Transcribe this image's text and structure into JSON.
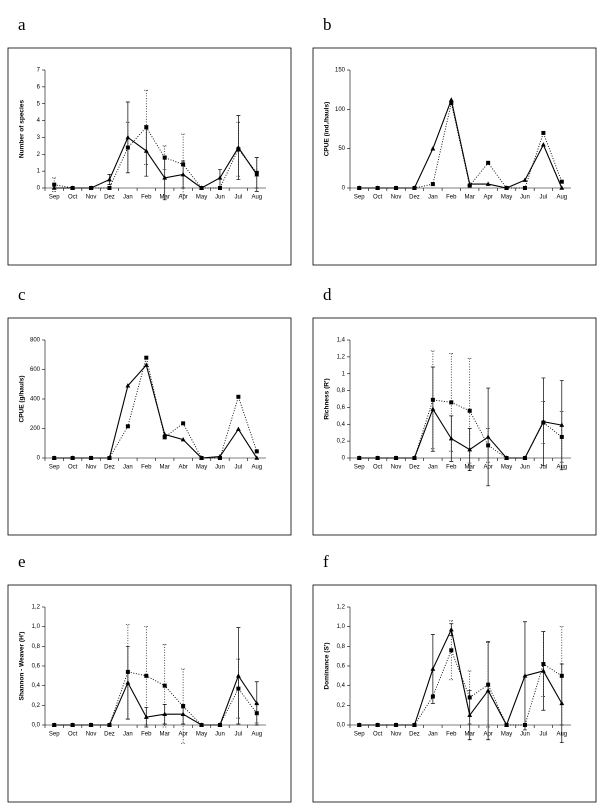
{
  "chart_data": [
    {
      "type": "line",
      "label": "a",
      "ylabel": "Number of species",
      "categories": [
        "Sep",
        "Oct",
        "Nov",
        "Dez",
        "Jan",
        "Feb",
        "Mar",
        "Apr",
        "May",
        "Jun",
        "Jul",
        "Aug"
      ],
      "ylim": [
        0,
        7
      ],
      "yticks": [
        0,
        1,
        2,
        3,
        4,
        5,
        6,
        7
      ],
      "series": [
        {
          "color": "#000000",
          "marker": "triangle",
          "line_style": "solid",
          "values": [
            0,
            0,
            0,
            0.5,
            3,
            2.2,
            0.6,
            0.8,
            0,
            0.6,
            2.4,
            0.8
          ],
          "errors": [
            null,
            null,
            null,
            0.3,
            2.1,
            1.5,
            1.3,
            0.8,
            null,
            0.5,
            1.9,
            1.0
          ]
        },
        {
          "color": "#000000",
          "marker": "square",
          "line_style": "dotted",
          "values": [
            0.2,
            0,
            0,
            0,
            2.4,
            3.6,
            1.8,
            1.4,
            0,
            0,
            2.3,
            0.9
          ],
          "errors": [
            0.4,
            null,
            null,
            null,
            1.5,
            2.2,
            0.7,
            1.8,
            null,
            null,
            1.6,
            0.9
          ]
        }
      ]
    },
    {
      "type": "line",
      "label": "b",
      "ylabel": "CPUE (ind./hauls)",
      "categories": [
        "Sep",
        "Oct",
        "Nov",
        "Dez",
        "Jan",
        "Feb",
        "Mar",
        "Apr",
        "May",
        "Jun",
        "Jul",
        "Aug"
      ],
      "ylim": [
        0,
        150
      ],
      "yticks": [
        0,
        50,
        100,
        150
      ],
      "series": [
        {
          "color": "#000000",
          "marker": "triangle",
          "line_style": "solid",
          "values": [
            0,
            0,
            0,
            0,
            50,
            112,
            5,
            5,
            0,
            10,
            55,
            0
          ]
        },
        {
          "color": "#000000",
          "marker": "square",
          "line_style": "dotted",
          "values": [
            0,
            0,
            0,
            0,
            5,
            108,
            3,
            32,
            0,
            0,
            70,
            8
          ]
        }
      ]
    },
    {
      "type": "line",
      "label": "c",
      "ylabel": "CPUE (g/hauls)",
      "categories": [
        "Sep",
        "Oct",
        "Nov",
        "Dez",
        "Jan",
        "Feb",
        "Mar",
        "Abr",
        "May",
        "Jun",
        "Jul",
        "Aug"
      ],
      "ylim": [
        0,
        800
      ],
      "yticks": [
        0,
        200,
        400,
        600,
        800
      ],
      "series": [
        {
          "color": "#000000",
          "marker": "triangle",
          "line_style": "solid",
          "values": [
            0,
            0,
            0,
            0,
            490,
            630,
            160,
            125,
            0,
            10,
            195,
            0
          ]
        },
        {
          "color": "#000000",
          "marker": "square",
          "line_style": "dotted",
          "values": [
            0,
            0,
            0,
            0,
            215,
            680,
            140,
            235,
            0,
            0,
            415,
            45
          ]
        }
      ]
    },
    {
      "type": "line",
      "label": "d",
      "ylabel": "Richness (R')",
      "categories": [
        "Sep",
        "Oct",
        "Nov",
        "Dez",
        "Jan",
        "Feb",
        "Mar",
        "Apr",
        "May",
        "Jun",
        "Jul",
        "Aug"
      ],
      "ylim": [
        0,
        1.4
      ],
      "yticks": [
        0,
        {
          "value": 0.2,
          "label": "0,2"
        },
        {
          "value": 0.4,
          "label": "0,4"
        },
        {
          "value": 0.6,
          "label": "0,6"
        },
        {
          "value": 0.8,
          "label": "0,8"
        },
        1,
        {
          "value": 1.2,
          "label": "1,2"
        },
        {
          "value": 1.4,
          "label": "1,4"
        }
      ],
      "series": [
        {
          "color": "#000000",
          "marker": "triangle",
          "line_style": "solid",
          "values": [
            0,
            0,
            0,
            0,
            0.58,
            0.23,
            0.1,
            0.25,
            0,
            0,
            0.43,
            0.39
          ],
          "errors": [
            null,
            null,
            null,
            null,
            0.5,
            0.27,
            0.25,
            0.58,
            null,
            null,
            0.52,
            0.53
          ]
        },
        {
          "color": "#000000",
          "marker": "square",
          "line_style": "dotted",
          "values": [
            0,
            0,
            0,
            0,
            0.69,
            0.66,
            0.56,
            0.15,
            0,
            0,
            0.42,
            0.25
          ],
          "errors": [
            null,
            null,
            null,
            null,
            0.58,
            0.58,
            0.62,
            0.2,
            null,
            null,
            0.25,
            0.3
          ]
        }
      ]
    },
    {
      "type": "line",
      "label": "e",
      "ylabel": "Shannon - Weaver (H')",
      "categories": [
        "Sep",
        "Oct",
        "Nov",
        "Dez",
        "Jan",
        "Feb",
        "Mar",
        "Apr",
        "May",
        "Jun",
        "Jul",
        "Aug"
      ],
      "ylim": [
        0,
        1.2
      ],
      "yticks": [
        {
          "value": 0,
          "label": "0,0"
        },
        {
          "value": 0.2,
          "label": "0,2"
        },
        {
          "value": 0.4,
          "label": "0,4"
        },
        {
          "value": 0.6,
          "label": "0,6"
        },
        {
          "value": 0.8,
          "label": "0,8"
        },
        {
          "value": 1,
          "label": "1,0"
        },
        {
          "value": 1.2,
          "label": "1,2"
        }
      ],
      "series": [
        {
          "color": "#000000",
          "marker": "triangle",
          "line_style": "solid",
          "values": [
            0,
            0,
            0,
            0,
            0.43,
            0.08,
            0.11,
            0.11,
            0,
            0,
            0.5,
            0.22
          ],
          "errors": [
            null,
            null,
            null,
            null,
            0.37,
            0.1,
            0.1,
            0.1,
            null,
            null,
            0.49,
            0.22
          ]
        },
        {
          "color": "#000000",
          "marker": "square",
          "line_style": "dotted",
          "values": [
            0,
            0,
            0,
            0,
            0.54,
            0.5,
            0.4,
            0.19,
            0,
            0,
            0.37,
            0.12
          ],
          "errors": [
            null,
            null,
            null,
            null,
            0.48,
            0.5,
            0.42,
            0.38,
            null,
            null,
            0.3,
            0.1
          ]
        }
      ]
    },
    {
      "type": "line",
      "label": "f",
      "ylabel": "Dominance (S')",
      "categories": [
        "Sep",
        "Oct",
        "Nov",
        "Dez",
        "Jan",
        "Feb",
        "Mar",
        "Apr",
        "May",
        "Jun",
        "Jul",
        "Aug"
      ],
      "ylim": [
        0,
        1.2
      ],
      "yticks": [
        {
          "value": 0,
          "label": "0,0"
        },
        {
          "value": 0.2,
          "label": "0,2"
        },
        {
          "value": 0.4,
          "label": "0,4"
        },
        {
          "value": 0.6,
          "label": "0,6"
        },
        {
          "value": 0.8,
          "label": "0,8"
        },
        {
          "value": 1,
          "label": "1,0"
        },
        {
          "value": 1.2,
          "label": "1,2"
        }
      ],
      "series": [
        {
          "color": "#000000",
          "marker": "triangle",
          "line_style": "solid",
          "values": [
            0,
            0,
            0,
            0,
            0.57,
            0.97,
            0.1,
            0.35,
            0,
            0.5,
            0.55,
            0.22
          ],
          "errors": [
            null,
            null,
            null,
            null,
            0.35,
            0.06,
            0.25,
            0.5,
            null,
            0.55,
            0.4,
            0.4
          ]
        },
        {
          "color": "#000000",
          "marker": "square",
          "line_style": "dotted",
          "values": [
            0,
            0,
            0,
            0,
            0.29,
            0.76,
            0.28,
            0.41,
            0,
            0,
            0.62,
            0.5
          ],
          "errors": [
            null,
            null,
            null,
            null,
            null,
            0.3,
            0.27,
            0.43,
            null,
            null,
            0.33,
            0.5
          ]
        }
      ]
    }
  ]
}
